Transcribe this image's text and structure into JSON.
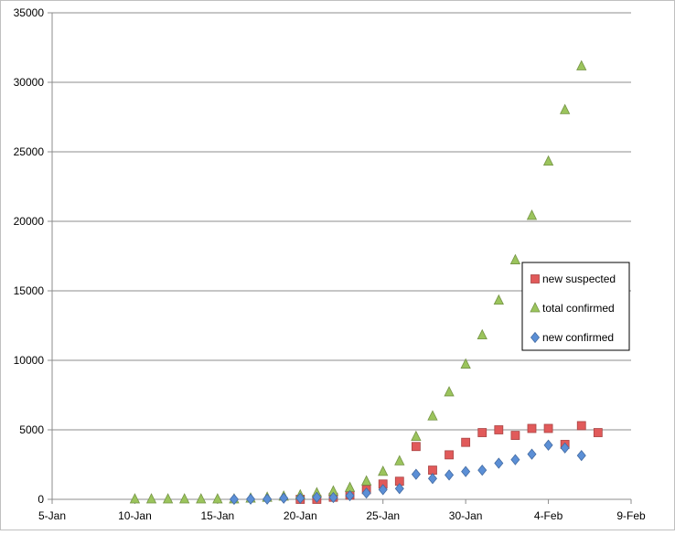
{
  "chart_data": {
    "type": "scatter",
    "x_axis": {
      "type": "date",
      "range": [
        "2020-01-05",
        "2020-02-09"
      ],
      "tick_labels": [
        "5-Jan",
        "10-Jan",
        "15-Jan",
        "20-Jan",
        "25-Jan",
        "30-Jan",
        "4-Feb",
        "9-Feb"
      ],
      "tick_dates": [
        "2020-01-05",
        "2020-01-10",
        "2020-01-15",
        "2020-01-20",
        "2020-01-25",
        "2020-01-30",
        "2020-02-04",
        "2020-02-09"
      ]
    },
    "y_axis": {
      "range": [
        0,
        35000
      ],
      "tick_labels": [
        "0",
        "5000",
        "10000",
        "15000",
        "20000",
        "25000",
        "30000",
        "35000"
      ],
      "tick_values": [
        0,
        5000,
        10000,
        15000,
        20000,
        25000,
        30000,
        35000
      ]
    },
    "grid": "horizontal major gridlines",
    "legend_position": "right",
    "series": [
      {
        "name": "new suspected",
        "marker": "square",
        "color": "#e15a5a",
        "points": [
          [
            "2020-01-20",
            0
          ],
          [
            "2020-01-21",
            0
          ],
          [
            "2020-01-22",
            150
          ],
          [
            "2020-01-23",
            300
          ],
          [
            "2020-01-24",
            700
          ],
          [
            "2020-01-25",
            1100
          ],
          [
            "2020-01-26",
            1300
          ],
          [
            "2020-01-27",
            3800
          ],
          [
            "2020-01-28",
            2100
          ],
          [
            "2020-01-29",
            3200
          ],
          [
            "2020-01-30",
            4100
          ],
          [
            "2020-01-31",
            4800
          ],
          [
            "2020-02-01",
            5000
          ],
          [
            "2020-02-02",
            4600
          ],
          [
            "2020-02-03",
            5100
          ],
          [
            "2020-02-04",
            5100
          ],
          [
            "2020-02-05",
            3950
          ],
          [
            "2020-02-06",
            5300
          ],
          [
            "2020-02-07",
            4800
          ]
        ]
      },
      {
        "name": "total confirmed",
        "marker": "triangle",
        "color": "#9bc45c",
        "points": [
          [
            "2020-01-10",
            0
          ],
          [
            "2020-01-11",
            0
          ],
          [
            "2020-01-12",
            0
          ],
          [
            "2020-01-13",
            0
          ],
          [
            "2020-01-14",
            0
          ],
          [
            "2020-01-15",
            0
          ],
          [
            "2020-01-16",
            0
          ],
          [
            "2020-01-17",
            60
          ],
          [
            "2020-01-18",
            120
          ],
          [
            "2020-01-19",
            200
          ],
          [
            "2020-01-20",
            290
          ],
          [
            "2020-01-21",
            440
          ],
          [
            "2020-01-22",
            570
          ],
          [
            "2020-01-23",
            830
          ],
          [
            "2020-01-24",
            1290
          ],
          [
            "2020-01-25",
            1980
          ],
          [
            "2020-01-26",
            2740
          ],
          [
            "2020-01-27",
            4500
          ],
          [
            "2020-01-28",
            5970
          ],
          [
            "2020-01-29",
            7700
          ],
          [
            "2020-01-30",
            9700
          ],
          [
            "2020-01-31",
            11800
          ],
          [
            "2020-02-01",
            14300
          ],
          [
            "2020-02-02",
            17200
          ],
          [
            "2020-02-03",
            20400
          ],
          [
            "2020-02-04",
            24300
          ],
          [
            "2020-02-05",
            28000
          ],
          [
            "2020-02-06",
            31150
          ]
        ]
      },
      {
        "name": "new confirmed",
        "marker": "diamond",
        "color": "#5b8fd6",
        "points": [
          [
            "2020-01-16",
            0
          ],
          [
            "2020-01-17",
            20
          ],
          [
            "2020-01-18",
            20
          ],
          [
            "2020-01-19",
            80
          ],
          [
            "2020-01-20",
            80
          ],
          [
            "2020-01-21",
            150
          ],
          [
            "2020-01-22",
            130
          ],
          [
            "2020-01-23",
            260
          ],
          [
            "2020-01-24",
            450
          ],
          [
            "2020-01-25",
            700
          ],
          [
            "2020-01-26",
            770
          ],
          [
            "2020-01-27",
            1800
          ],
          [
            "2020-01-28",
            1500
          ],
          [
            "2020-01-29",
            1750
          ],
          [
            "2020-01-30",
            2000
          ],
          [
            "2020-01-31",
            2100
          ],
          [
            "2020-02-01",
            2600
          ],
          [
            "2020-02-02",
            2850
          ],
          [
            "2020-02-03",
            3250
          ],
          [
            "2020-02-04",
            3900
          ],
          [
            "2020-02-05",
            3700
          ],
          [
            "2020-02-06",
            3150
          ]
        ]
      }
    ]
  }
}
